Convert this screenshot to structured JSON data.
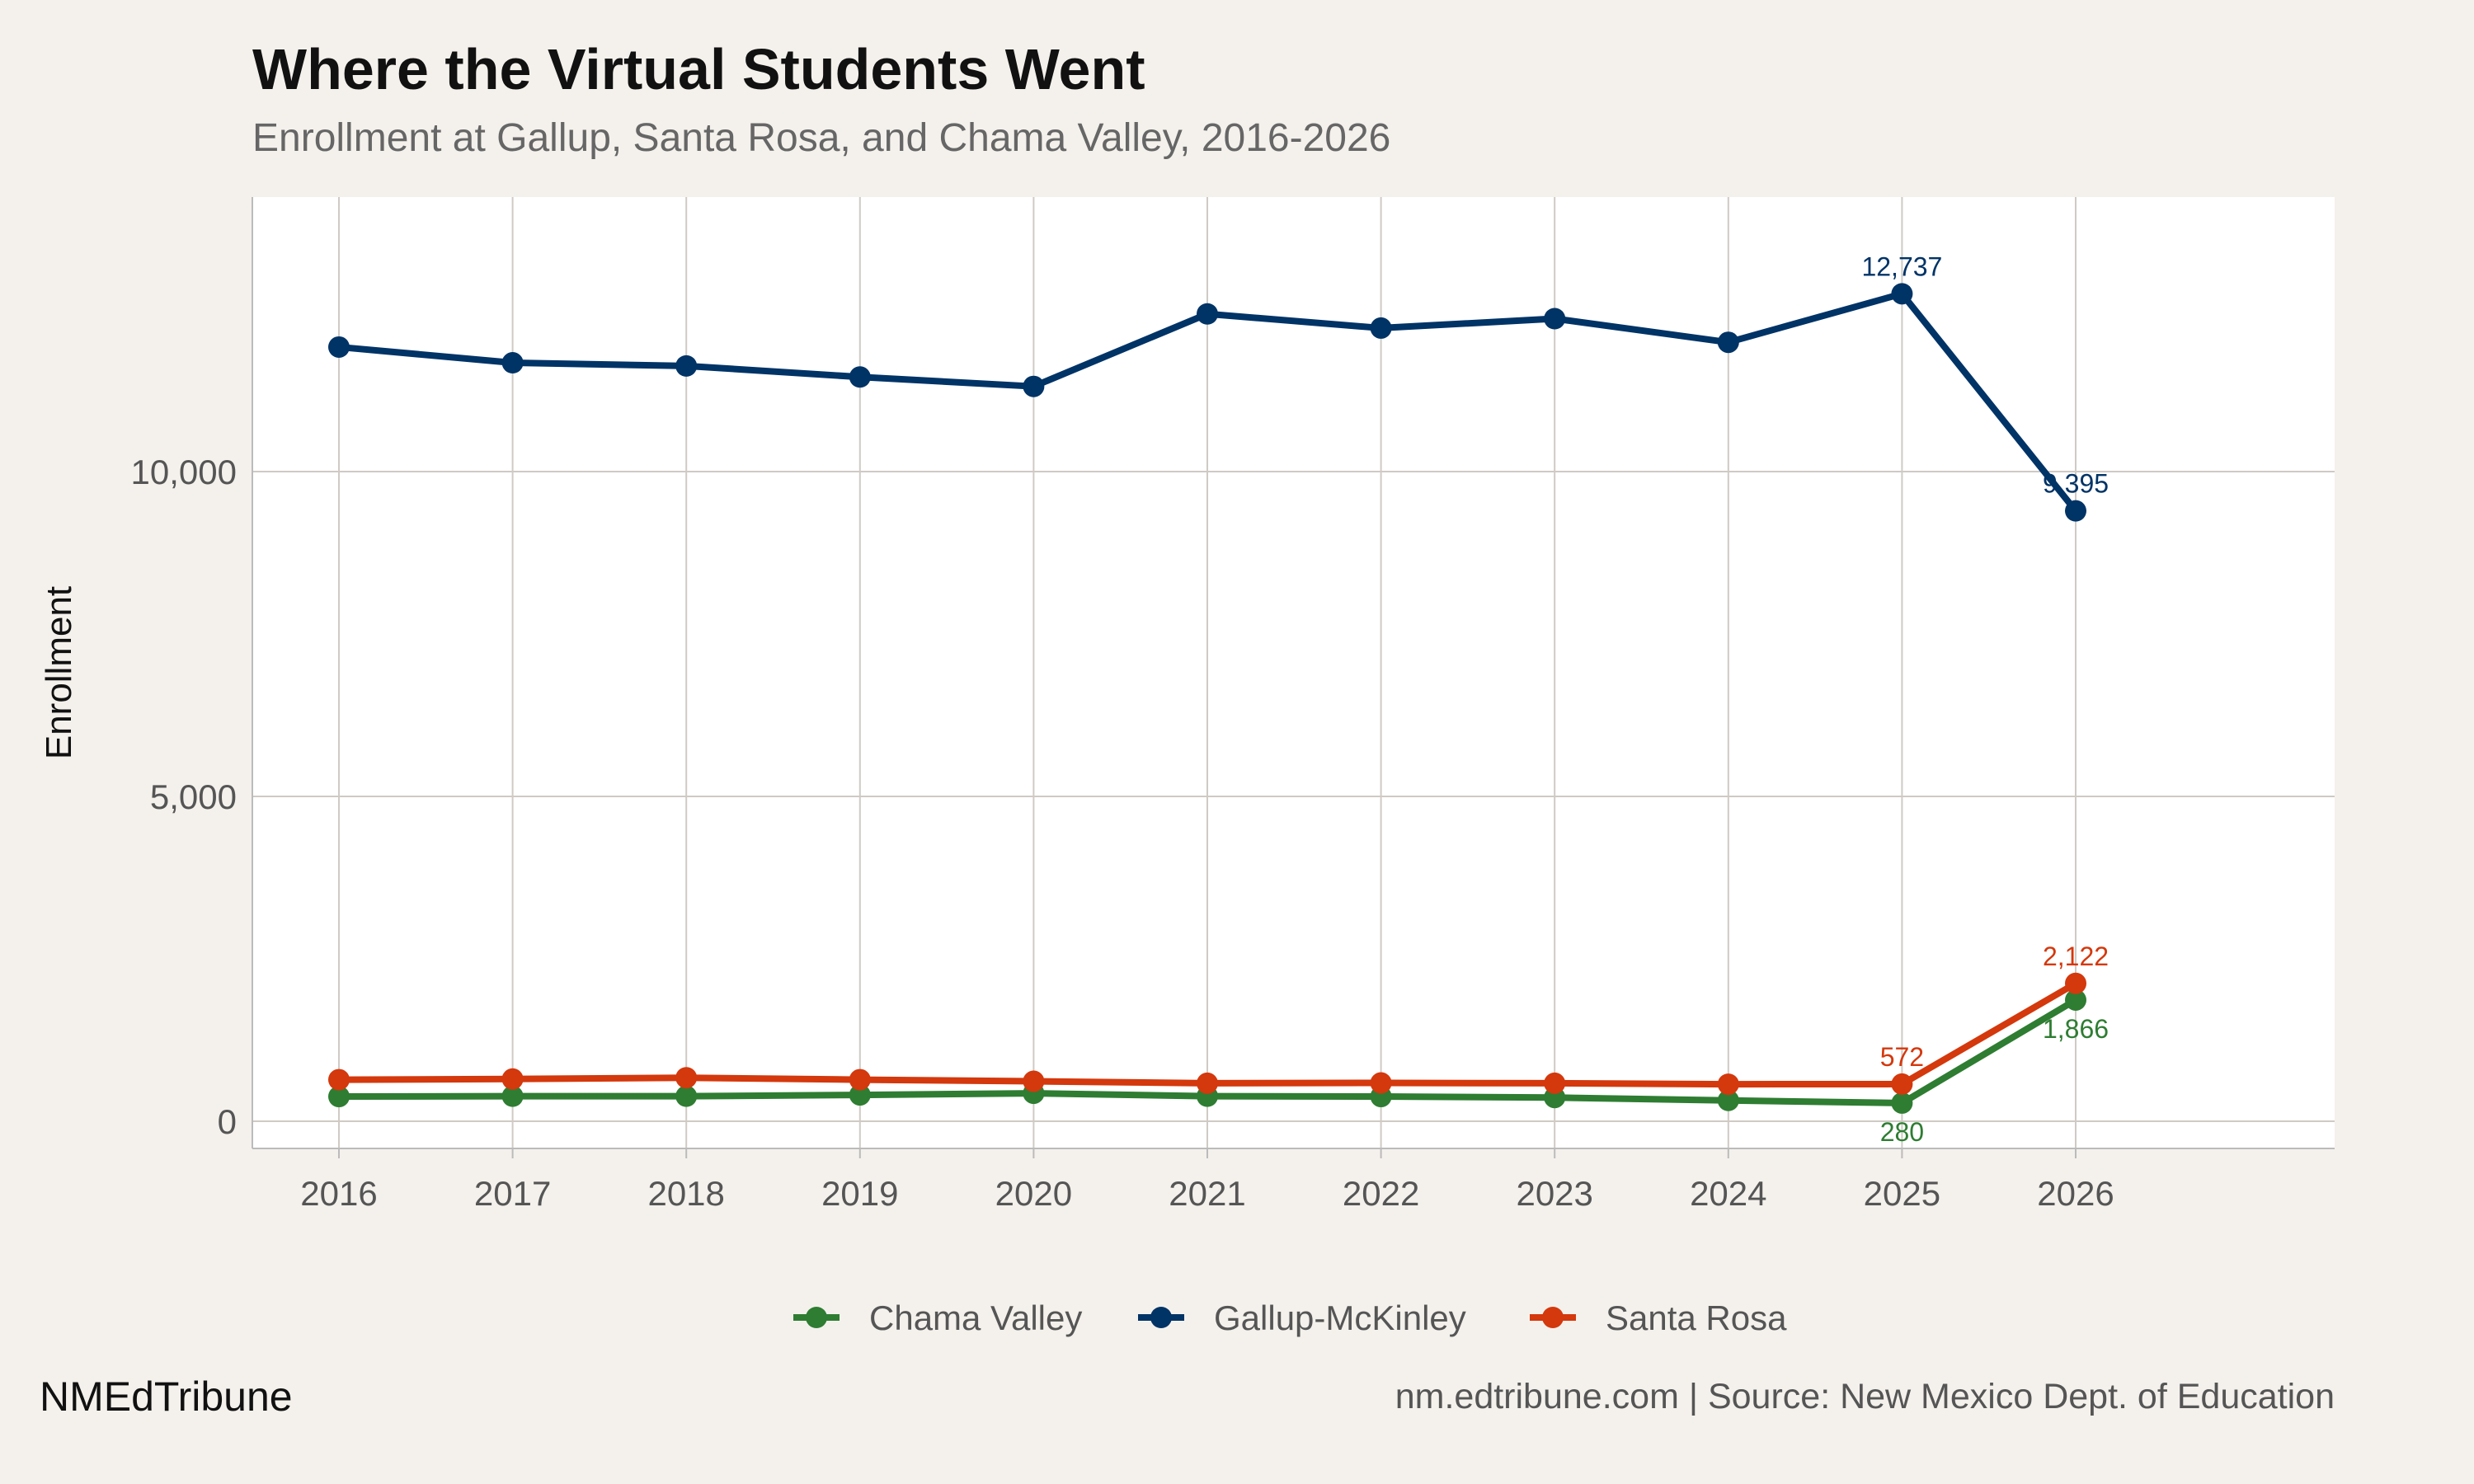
{
  "title": "Where the Virtual Students Went",
  "subtitle": "Enrollment at Gallup, Santa Rosa, and Chama Valley, 2016-2026",
  "footer": {
    "brand": "NMEdTribune",
    "source": "nm.edtribune.com | Source: New Mexico Dept. of Education"
  },
  "chart_data": {
    "type": "line",
    "title": "Where the Virtual Students Went",
    "subtitle": "Enrollment at Gallup, Santa Rosa, and Chama Valley, 2016-2026",
    "xlabel": "",
    "ylabel": "Enrollment",
    "x": [
      2016,
      2017,
      2018,
      2019,
      2020,
      2021,
      2022,
      2023,
      2024,
      2025,
      2026
    ],
    "x_tick_labels": [
      "2016",
      "2017",
      "2018",
      "2019",
      "2020",
      "2021",
      "2022",
      "2023",
      "2024",
      "2025",
      "2026"
    ],
    "ylim": [
      -300,
      14000
    ],
    "y_ticks": [
      0,
      5000,
      10000
    ],
    "y_tick_labels": [
      "0",
      "5,000",
      "10,000"
    ],
    "grid": true,
    "legend_position": "bottom",
    "series": [
      {
        "name": "Chama Valley",
        "color": "#2e7d32",
        "values": [
          380,
          385,
          385,
          405,
          430,
          385,
          380,
          365,
          320,
          280,
          1866
        ],
        "labels": {
          "2025": "280",
          "2026": "1,866"
        }
      },
      {
        "name": "Gallup-McKinley",
        "color": "#003366",
        "values": [
          11917,
          11675,
          11626,
          11456,
          11311,
          12427,
          12209,
          12354,
          11990,
          12737,
          9395
        ],
        "labels": {
          "2025": "12,737",
          "2026": "9,395"
        }
      },
      {
        "name": "Santa Rosa",
        "color": "#d4380d",
        "values": [
          640,
          650,
          670,
          640,
          615,
          585,
          590,
          585,
          570,
          572,
          2122
        ],
        "labels": {
          "2025": "572",
          "2026": "2,122"
        }
      }
    ]
  }
}
